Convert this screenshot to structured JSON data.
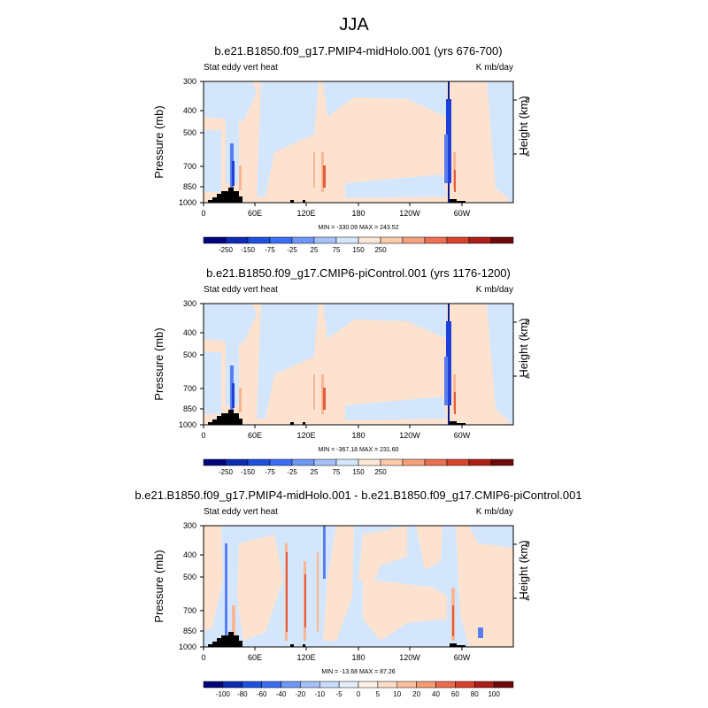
{
  "figure_title": "JJA",
  "colors": {
    "deep_blue": "#0a1a8c",
    "strong_blue": "#1f3fd8",
    "mid_blue": "#5a7ef0",
    "light_blue": "#d4e6fb",
    "pale_orange": "#fde3cf",
    "light_orange": "#f9b694",
    "strong_orange": "#e45a3a",
    "dark_red": "#7a0a0a",
    "topography": "#000000"
  },
  "chart_data": [
    {
      "type": "heatmap",
      "title": "b.e21.B1850.f09_g17.PMIP4-midHolo.001 (yrs 676-700)",
      "left_label": "Stat eddy vert heat",
      "right_label": "K mb/day",
      "ylabel": "Pressure (mb)",
      "ylabel_right": "Height (km)",
      "x_ticks": [
        "0",
        "60E",
        "120E",
        "180",
        "120W",
        "60W"
      ],
      "y_ticks": [
        "300",
        "400",
        "500",
        "700",
        "850",
        "1000"
      ],
      "y_ticks_right": [
        "8",
        "4"
      ],
      "stats": "MIN = -330.09  MAX = 243.52",
      "colorbar_ticks": [
        "-250",
        "-150",
        "-75",
        "-25",
        "25",
        "75",
        "150",
        "250"
      ],
      "colorbar_levels": 14
    },
    {
      "type": "heatmap",
      "title": "b.e21.B1850.f09_g17.CMIP6-piControl.001 (yrs 1176-1200)",
      "left_label": "Stat eddy vert heat",
      "right_label": "K mb/day",
      "ylabel": "Pressure (mb)",
      "ylabel_right": "Height (km)",
      "x_ticks": [
        "0",
        "60E",
        "120E",
        "180",
        "120W",
        "60W"
      ],
      "y_ticks": [
        "300",
        "400",
        "500",
        "700",
        "850",
        "1000"
      ],
      "y_ticks_right": [
        "8",
        "4"
      ],
      "stats": "MIN = -367.18  MAX = 231.60",
      "colorbar_ticks": [
        "-250",
        "-150",
        "-75",
        "-25",
        "25",
        "75",
        "150",
        "250"
      ],
      "colorbar_levels": 14
    },
    {
      "type": "heatmap",
      "title": "b.e21.B1850.f09_g17.PMIP4-midHolo.001 - b.e21.B1850.f09_g17.CMIP6-piControl.001",
      "left_label": "Stat eddy vert heat",
      "right_label": "K mb/day",
      "ylabel": "Pressure (mb)",
      "ylabel_right": "Height (km)",
      "x_ticks": [
        "0",
        "60E",
        "120E",
        "180",
        "120W",
        "60W"
      ],
      "y_ticks": [
        "300",
        "400",
        "500",
        "700",
        "850",
        "1000"
      ],
      "y_ticks_right": [
        "8",
        "4"
      ],
      "stats": "MIN = -13.68  MAX = 87.26",
      "colorbar_ticks": [
        "-100",
        "-80",
        "-60",
        "-40",
        "-20",
        "-10",
        "-5",
        "0",
        "5",
        "10",
        "20",
        "40",
        "60",
        "80",
        "100"
      ],
      "colorbar_levels": 16
    }
  ]
}
